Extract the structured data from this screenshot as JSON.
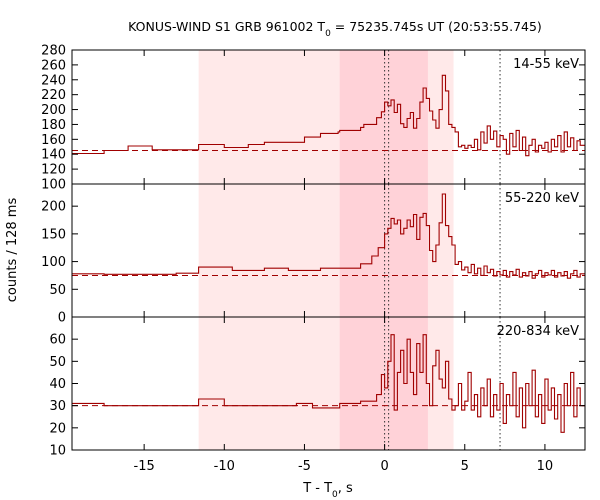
{
  "chart_data": {
    "type": "line",
    "title_prefix": "KONUS-WIND S1 GRB 961002 T",
    "title_sub": "0",
    "title_suffix": " = 75235.745s UT (20:53:55.745)",
    "xlabel_prefix": "T - T",
    "xlabel_sub": "0",
    "xlabel_suffix": ", s",
    "ylabel": "counts / 128 ms",
    "xlim": [
      -19.5,
      12.5
    ],
    "xticks": [
      -15,
      -10,
      -5,
      0,
      5,
      10
    ],
    "shaded_outer": [
      -11.6,
      4.3
    ],
    "shaded_inner": [
      -2.8,
      2.7
    ],
    "vlines_dotted": [
      0,
      0.25,
      7.2
    ],
    "line_color": "#a00000",
    "shade_outer_color": "#ffe9e9",
    "shade_inner_color": "#ffd2d8",
    "panels": [
      {
        "label": "14-55 keV",
        "ylim": [
          100,
          280
        ],
        "yticks": [
          100,
          120,
          140,
          160,
          180,
          200,
          220,
          240,
          260,
          280
        ],
        "background": 145,
        "steps": [
          [
            -19.5,
            141
          ],
          [
            -17.5,
            145
          ],
          [
            -16.0,
            151
          ],
          [
            -14.5,
            146
          ],
          [
            -11.6,
            153
          ],
          [
            -10.0,
            149
          ],
          [
            -8.5,
            153
          ],
          [
            -7.5,
            156
          ],
          [
            -5.0,
            163
          ],
          [
            -4.0,
            168
          ],
          [
            -2.9,
            170
          ],
          [
            -2.8,
            172
          ],
          [
            -1.5,
            176
          ],
          [
            -1.3,
            180
          ],
          [
            -0.5,
            189
          ],
          [
            -0.2,
            197
          ],
          [
            0.0,
            210
          ],
          [
            0.2,
            205
          ],
          [
            0.4,
            213
          ],
          [
            0.6,
            196
          ],
          [
            0.8,
            207
          ],
          [
            1.0,
            181
          ],
          [
            1.2,
            176
          ],
          [
            1.4,
            188
          ],
          [
            1.6,
            196
          ],
          [
            1.8,
            175
          ],
          [
            2.0,
            188
          ],
          [
            2.2,
            210
          ],
          [
            2.4,
            229
          ],
          [
            2.6,
            215
          ],
          [
            2.8,
            198
          ],
          [
            3.0,
            186
          ],
          [
            3.2,
            175
          ],
          [
            3.4,
            200
          ],
          [
            3.6,
            246
          ],
          [
            3.8,
            225
          ],
          [
            4.0,
            180
          ],
          [
            4.2,
            176
          ],
          [
            4.4,
            170
          ],
          [
            4.6,
            150
          ],
          [
            4.8,
            152
          ],
          [
            5.0,
            148
          ],
          [
            5.2,
            152
          ],
          [
            5.4,
            149
          ],
          [
            5.6,
            160
          ],
          [
            5.8,
            146
          ],
          [
            6.0,
            170
          ],
          [
            6.2,
            155
          ],
          [
            6.4,
            178
          ],
          [
            6.6,
            160
          ],
          [
            6.8,
            171
          ],
          [
            7.0,
            150
          ],
          [
            7.2,
            165
          ],
          [
            7.4,
            160
          ],
          [
            7.6,
            140
          ],
          [
            7.8,
            168
          ],
          [
            8.0,
            150
          ],
          [
            8.2,
            172
          ],
          [
            8.4,
            145
          ],
          [
            8.6,
            163
          ],
          [
            8.8,
            138
          ],
          [
            9.0,
            152
          ],
          [
            9.2,
            160
          ],
          [
            9.4,
            143
          ],
          [
            9.6,
            152
          ],
          [
            9.8,
            148
          ],
          [
            10.0,
            156
          ],
          [
            10.2,
            143
          ],
          [
            10.4,
            160
          ],
          [
            10.6,
            150
          ],
          [
            10.8,
            165
          ],
          [
            11.0,
            143
          ],
          [
            11.2,
            170
          ],
          [
            11.4,
            150
          ],
          [
            11.6,
            162
          ],
          [
            11.8,
            145
          ],
          [
            12.0,
            158
          ],
          [
            12.2,
            152
          ]
        ]
      },
      {
        "label": "55-220 keV",
        "ylim": [
          0,
          240
        ],
        "yticks": [
          0,
          50,
          100,
          150,
          200
        ],
        "background": 75,
        "steps": [
          [
            -19.5,
            78
          ],
          [
            -17.5,
            77
          ],
          [
            -15.5,
            77
          ],
          [
            -13.0,
            79
          ],
          [
            -11.6,
            90
          ],
          [
            -9.5,
            84
          ],
          [
            -7.5,
            88
          ],
          [
            -6.0,
            84
          ],
          [
            -4.0,
            88
          ],
          [
            -2.8,
            88
          ],
          [
            -1.5,
            96
          ],
          [
            -0.8,
            110
          ],
          [
            -0.4,
            125
          ],
          [
            0.0,
            150
          ],
          [
            0.2,
            160
          ],
          [
            0.4,
            178
          ],
          [
            0.6,
            168
          ],
          [
            0.8,
            175
          ],
          [
            1.0,
            150
          ],
          [
            1.2,
            160
          ],
          [
            1.4,
            175
          ],
          [
            1.6,
            163
          ],
          [
            1.8,
            185
          ],
          [
            2.0,
            140
          ],
          [
            2.2,
            180
          ],
          [
            2.4,
            187
          ],
          [
            2.6,
            165
          ],
          [
            2.8,
            120
          ],
          [
            3.0,
            100
          ],
          [
            3.2,
            130
          ],
          [
            3.4,
            170
          ],
          [
            3.6,
            222
          ],
          [
            3.8,
            165
          ],
          [
            4.0,
            145
          ],
          [
            4.2,
            130
          ],
          [
            4.4,
            95
          ],
          [
            4.6,
            100
          ],
          [
            4.8,
            85
          ],
          [
            5.0,
            90
          ],
          [
            5.2,
            80
          ],
          [
            5.4,
            95
          ],
          [
            5.6,
            78
          ],
          [
            5.8,
            88
          ],
          [
            6.0,
            75
          ],
          [
            6.2,
            92
          ],
          [
            6.4,
            80
          ],
          [
            6.6,
            86
          ],
          [
            6.8,
            74
          ],
          [
            7.0,
            82
          ],
          [
            7.2,
            76
          ],
          [
            7.4,
            84
          ],
          [
            7.6,
            72
          ],
          [
            7.8,
            82
          ],
          [
            8.0,
            76
          ],
          [
            8.2,
            86
          ],
          [
            8.4,
            72
          ],
          [
            8.6,
            80
          ],
          [
            8.8,
            74
          ],
          [
            9.0,
            82
          ],
          [
            9.2,
            70
          ],
          [
            9.4,
            78
          ],
          [
            9.6,
            84
          ],
          [
            9.8,
            72
          ],
          [
            10.0,
            80
          ],
          [
            10.2,
            76
          ],
          [
            10.4,
            84
          ],
          [
            10.6,
            72
          ],
          [
            10.8,
            80
          ],
          [
            11.0,
            74
          ],
          [
            11.2,
            82
          ],
          [
            11.4,
            70
          ],
          [
            11.6,
            78
          ],
          [
            11.8,
            84
          ],
          [
            12.0,
            72
          ],
          [
            12.2,
            78
          ]
        ]
      },
      {
        "label": "220-834 keV",
        "ylim": [
          10,
          70
        ],
        "yticks": [
          10,
          20,
          30,
          40,
          50,
          60
        ],
        "background": 30,
        "steps": [
          [
            -19.5,
            31
          ],
          [
            -17.5,
            30
          ],
          [
            -15.5,
            30
          ],
          [
            -13.5,
            30
          ],
          [
            -11.6,
            33
          ],
          [
            -10.0,
            30
          ],
          [
            -7.5,
            30
          ],
          [
            -5.5,
            31
          ],
          [
            -4.5,
            29
          ],
          [
            -2.8,
            31
          ],
          [
            -1.5,
            32
          ],
          [
            -0.5,
            35
          ],
          [
            -0.2,
            44
          ],
          [
            0.0,
            38
          ],
          [
            0.2,
            50
          ],
          [
            0.4,
            62
          ],
          [
            0.6,
            28
          ],
          [
            0.8,
            45
          ],
          [
            1.0,
            55
          ],
          [
            1.2,
            40
          ],
          [
            1.4,
            60
          ],
          [
            1.6,
            45
          ],
          [
            1.8,
            35
          ],
          [
            2.0,
            58
          ],
          [
            2.2,
            45
          ],
          [
            2.4,
            62
          ],
          [
            2.6,
            40
          ],
          [
            2.8,
            30
          ],
          [
            3.0,
            48
          ],
          [
            3.2,
            55
          ],
          [
            3.4,
            42
          ],
          [
            3.6,
            38
          ],
          [
            3.8,
            50
          ],
          [
            4.0,
            33
          ],
          [
            4.2,
            28
          ],
          [
            4.4,
            30
          ],
          [
            4.6,
            40
          ],
          [
            4.8,
            28
          ],
          [
            5.0,
            32
          ],
          [
            5.2,
            45
          ],
          [
            5.4,
            28
          ],
          [
            5.6,
            35
          ],
          [
            5.8,
            25
          ],
          [
            6.0,
            38
          ],
          [
            6.2,
            30
          ],
          [
            6.4,
            42
          ],
          [
            6.6,
            25
          ],
          [
            6.8,
            35
          ],
          [
            7.0,
            28
          ],
          [
            7.2,
            40
          ],
          [
            7.4,
            22
          ],
          [
            7.6,
            35
          ],
          [
            7.8,
            30
          ],
          [
            8.0,
            45
          ],
          [
            8.2,
            25
          ],
          [
            8.4,
            38
          ],
          [
            8.6,
            20
          ],
          [
            8.8,
            40
          ],
          [
            9.0,
            30
          ],
          [
            9.2,
            46
          ],
          [
            9.4,
            25
          ],
          [
            9.6,
            35
          ],
          [
            9.8,
            22
          ],
          [
            10.0,
            42
          ],
          [
            10.2,
            28
          ],
          [
            10.4,
            38
          ],
          [
            10.6,
            24
          ],
          [
            10.8,
            35
          ],
          [
            11.0,
            18
          ],
          [
            11.2,
            40
          ],
          [
            11.4,
            30
          ],
          [
            11.6,
            45
          ],
          [
            11.8,
            25
          ],
          [
            12.0,
            38
          ],
          [
            12.2,
            30
          ]
        ]
      }
    ]
  }
}
